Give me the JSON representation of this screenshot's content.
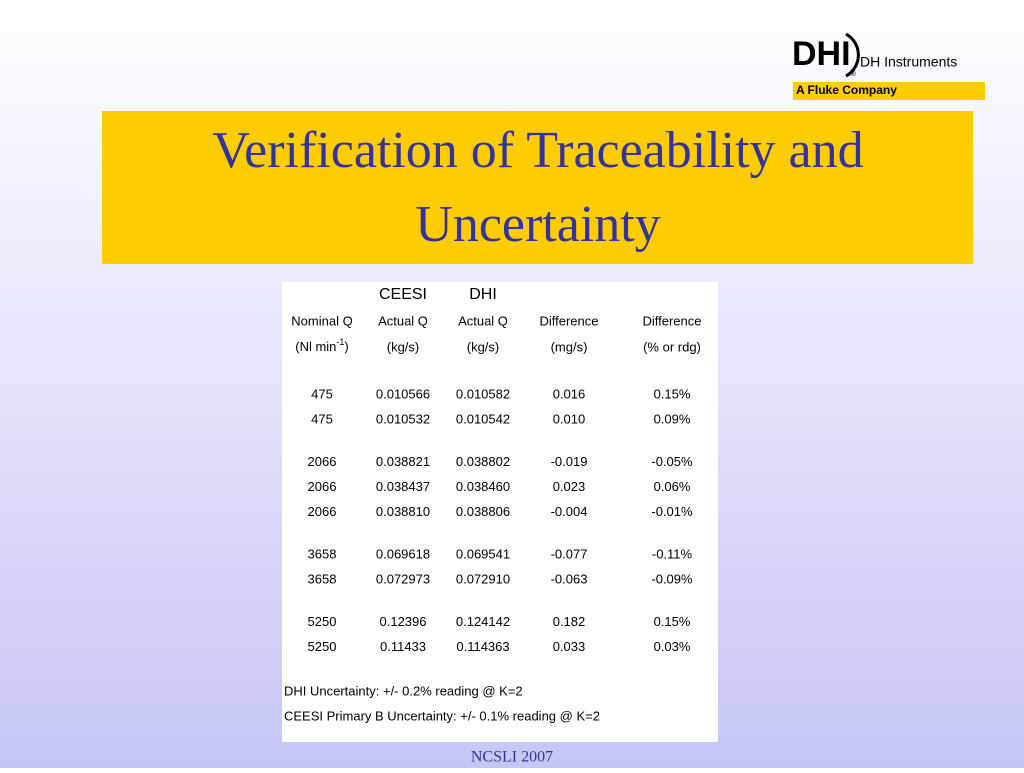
{
  "logo": {
    "mark": "DHI",
    "registered": "®",
    "name": "DH Instruments",
    "tagline": "A Fluke Company"
  },
  "title": {
    "line1": "Verification of Traceability and",
    "line2": "Uncertainty"
  },
  "table": {
    "header_top": [
      "CEESI",
      "DHI"
    ],
    "header": [
      "Nominal Q",
      "Actual Q",
      "Actual Q",
      "Difference",
      "Difference"
    ],
    "units": {
      "first": {
        "text": "(Nl min",
        "sup": "-1",
        "after": ")"
      },
      "rest": [
        "(kg/s)",
        "(kg/s)",
        "(mg/s)",
        "(% or rdg)"
      ]
    },
    "groups": [
      [
        [
          "475",
          "0.010566",
          "0.010582",
          "0.016",
          "0.15%"
        ],
        [
          "475",
          "0.010532",
          "0.010542",
          "0.010",
          "0.09%"
        ]
      ],
      [
        [
          "2066",
          "0.038821",
          "0.038802",
          "-0.019",
          "-0.05%"
        ],
        [
          "2066",
          "0.038437",
          "0.038460",
          "0.023",
          "0.06%"
        ],
        [
          "2066",
          "0.038810",
          "0.038806",
          "-0.004",
          "-0.01%"
        ]
      ],
      [
        [
          "3658",
          "0.069618",
          "0.069541",
          "-0.077",
          "-0.11%"
        ],
        [
          "3658",
          "0.072973",
          "0.072910",
          "-0.063",
          "-0.09%"
        ]
      ],
      [
        [
          "5250",
          "0.12396",
          "0.124142",
          "0.182",
          "0.15%"
        ],
        [
          "5250",
          "0.11433",
          "0.114363",
          "0.033",
          "0.03%"
        ]
      ]
    ],
    "notes": [
      "DHI Uncertainty: +/- 0.2% reading @ K=2",
      "CEESI Primary B Uncertainty: +/- 0.1% reading @ K=2"
    ]
  },
  "footer": "NCSLI 2007"
}
